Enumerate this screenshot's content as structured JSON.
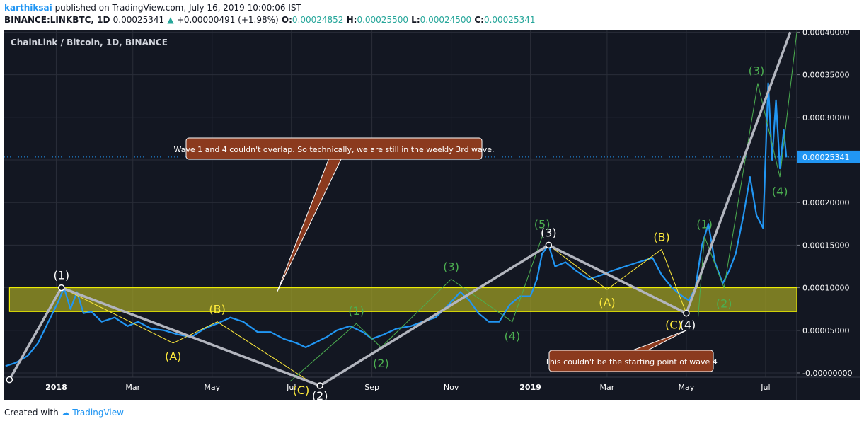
{
  "header": {
    "user": "karthiksai",
    "published_text": "published on TradingView.com, July 16, 2019 10:00:06 IST",
    "symbol_line": "BINANCE:LINKBTC, 1D",
    "last": "0.00025341",
    "change": "+0.00000491 (+1.98%)",
    "o_label": "O:",
    "o_value": "0.00024852",
    "h_label": "H:",
    "h_value": "0.00025500",
    "l_label": "L:",
    "l_value": "0.00024500",
    "c_label": "C:",
    "c_value": "0.00025341"
  },
  "footer": {
    "created_with": "Created with",
    "brand": "TradingView"
  },
  "colors": {
    "background": "#131722",
    "price": "#2196f3",
    "wave_major": "#b2b5be",
    "wave_green": "#4caf50",
    "wave_yellow": "#ffeb3b",
    "zone_fill": "#9e9d24",
    "callout_bg": "#8b3a1e",
    "axis_text": "#ffffff",
    "current_price_bg": "#2196f3"
  },
  "chart_data": {
    "type": "line",
    "title": "ChainLink / Bitcoin, 1D, BINANCE",
    "y_ticks": [
      "0.00040000",
      "0.00035000",
      "0.00030000",
      "0.00025000",
      "0.00020000",
      "0.00015000",
      "0.00010000",
      "0.00005000",
      "-0.00000000"
    ],
    "y_tick_values": [
      0.0004,
      0.00035,
      0.0003,
      0.00025,
      0.0002,
      0.00015,
      0.0001,
      5e-05,
      0
    ],
    "x_ticks": [
      "2018",
      "Mar",
      "May",
      "Jul",
      "Sep",
      "Nov",
      "2019",
      "Mar",
      "May",
      "Jul"
    ],
    "x_tick_dates": [
      "2018-01-01",
      "2018-03-01",
      "2018-05-01",
      "2018-07-01",
      "2018-09-01",
      "2018-11-01",
      "2019-01-01",
      "2019-03-01",
      "2019-05-01",
      "2019-07-01"
    ],
    "x_range": [
      "2017-11-22",
      "2019-07-25"
    ],
    "ylim": [
      -5e-06,
      0.000402
    ],
    "current_price": "0.00025341",
    "current_price_value": 0.00025341,
    "series": [
      {
        "x": [
          "2017-11-23",
          "2017-12-01",
          "2017-12-10",
          "2017-12-18",
          "2017-12-26",
          "2018-01-03",
          "2018-01-07",
          "2018-01-12",
          "2018-01-17",
          "2018-01-22",
          "2018-01-28",
          "2018-02-05",
          "2018-02-15",
          "2018-02-25",
          "2018-03-05",
          "2018-03-15",
          "2018-03-25",
          "2018-04-05",
          "2018-04-15",
          "2018-04-25",
          "2018-05-05",
          "2018-05-15",
          "2018-05-25",
          "2018-06-05",
          "2018-06-15",
          "2018-06-25",
          "2018-07-05",
          "2018-07-12",
          "2018-07-20",
          "2018-07-28",
          "2018-08-05",
          "2018-08-15",
          "2018-08-25",
          "2018-09-01",
          "2018-09-10",
          "2018-09-20",
          "2018-10-01",
          "2018-10-10",
          "2018-10-20",
          "2018-10-30",
          "2018-11-08",
          "2018-11-15",
          "2018-11-22",
          "2018-11-30",
          "2018-12-08",
          "2018-12-16",
          "2018-12-24",
          "2019-01-01",
          "2019-01-06",
          "2019-01-10",
          "2019-01-15",
          "2019-01-20",
          "2019-01-28",
          "2019-02-05",
          "2019-02-15",
          "2019-02-25",
          "2019-03-05",
          "2019-03-15",
          "2019-03-25",
          "2019-04-05",
          "2019-04-12",
          "2019-04-20",
          "2019-04-28",
          "2019-05-03",
          "2019-05-08",
          "2019-05-13",
          "2019-05-18",
          "2019-05-23",
          "2019-05-29",
          "2019-06-03",
          "2019-06-08",
          "2019-06-14",
          "2019-06-19",
          "2019-06-24",
          "2019-06-29",
          "2019-07-03",
          "2019-07-06",
          "2019-07-09",
          "2019-07-12",
          "2019-07-15",
          "2019-07-17"
        ],
        "values": [
          8e-06,
          1.2e-05,
          2e-05,
          3.5e-05,
          6e-05,
          8.5e-05,
          0.0001,
          7.5e-05,
          9.5e-05,
          7e-05,
          7.2e-05,
          6e-05,
          6.5e-05,
          5.5e-05,
          6e-05,
          5.2e-05,
          5e-05,
          4.5e-05,
          4.2e-05,
          5.2e-05,
          5.8e-05,
          6.5e-05,
          6e-05,
          4.8e-05,
          4.8e-05,
          4e-05,
          3.5e-05,
          3e-05,
          3.6e-05,
          4.2e-05,
          5e-05,
          5.5e-05,
          4.8e-05,
          4e-05,
          4.5e-05,
          5.2e-05,
          5.5e-05,
          6e-05,
          6.5e-05,
          8e-05,
          9.5e-05,
          8.5e-05,
          7e-05,
          6e-05,
          6e-05,
          8e-05,
          9e-05,
          9e-05,
          0.00011,
          0.00014,
          0.00015,
          0.000125,
          0.00013,
          0.00012,
          0.00011,
          0.000115,
          0.00012,
          0.000125,
          0.00013,
          0.000135,
          0.000115,
          0.0001,
          9e-05,
          8.5e-05,
          0.0001,
          0.00015,
          0.000175,
          0.00013,
          0.000105,
          0.00012,
          0.00014,
          0.000185,
          0.00023,
          0.000185,
          0.00017,
          0.00034,
          0.00025,
          0.00032,
          0.00024,
          0.000285,
          0.000253
        ]
      }
    ],
    "support_zone": {
      "x0": "2017-11-26",
      "x1": "2019-07-25",
      "y0": 7.2e-05,
      "y1": 0.0001
    },
    "wave_major": {
      "x": [
        "2017-11-26",
        "2018-01-05",
        "2018-07-23",
        "2019-01-15",
        "2019-05-01",
        "2019-07-20"
      ],
      "y": [
        -8e-06,
        0.0001,
        -1.5e-05,
        0.00015,
        7e-05,
        0.0004
      ],
      "labels": [
        "(1)",
        "(2)",
        "(3)",
        "(4)"
      ],
      "label_at": [
        1,
        2,
        3,
        4
      ]
    },
    "wave_minor_2018": {
      "x": [
        "2018-01-05",
        "2018-04-01",
        "2018-05-05",
        "2018-07-15"
      ],
      "y": [
        0.0001,
        3.5e-05,
        6e-05,
        -1e-05
      ],
      "labels": [
        "(A)",
        "(B)",
        "(C)"
      ]
    },
    "wave_green_2018": {
      "x": [
        "2018-06-30",
        "2018-08-20",
        "2018-09-08",
        "2018-11-01",
        "2018-12-18",
        "2019-01-10"
      ],
      "y": [
        -1e-05,
        5.8e-05,
        3e-05,
        0.00011,
        6e-05,
        0.00016
      ],
      "labels": [
        "(1)",
        "(2)",
        "(3)",
        "(4)",
        "(5)"
      ]
    },
    "wave_minor_2019": {
      "x": [
        "2019-01-15",
        "2019-03-01",
        "2019-04-12",
        "2019-05-01"
      ],
      "y": [
        0.00015,
        9.8e-05,
        0.000145,
        7e-05
      ],
      "labels": [
        "(A)",
        "(B)",
        "(C)"
      ]
    },
    "wave_green_2019": {
      "x": [
        "2019-05-10",
        "2019-05-15",
        "2019-05-30",
        "2019-06-25",
        "2019-07-12",
        "2019-07-25"
      ],
      "y": [
        6.5e-05,
        0.00016,
        0.0001,
        0.00034,
        0.00023,
        0.0004
      ],
      "labels": [
        "(1)",
        "(2)",
        "(3)",
        "(4)"
      ]
    },
    "annotations": [
      {
        "text": "Wave 1 and 4 couldn't overlap. So technically, we are still in the weekly 3rd wave.",
        "anchor_x": "2018-06-20",
        "anchor_y": 9.5e-05
      },
      {
        "text": "This couldn't be the starting point of wave 4",
        "anchor_x": "2019-05-01",
        "anchor_y": 5e-05
      }
    ]
  }
}
